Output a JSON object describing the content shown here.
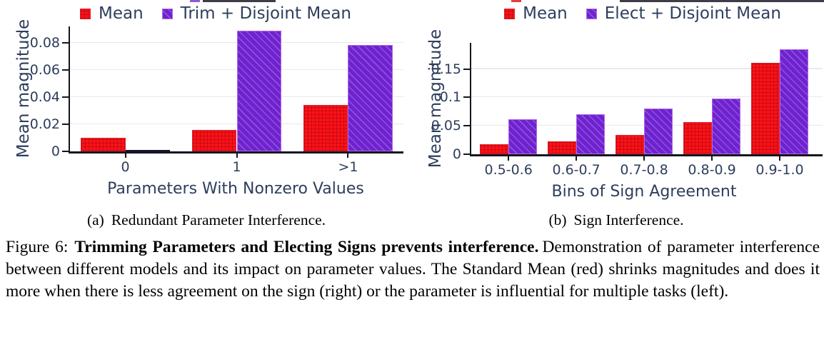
{
  "colors": {
    "mean_red": "#f91318",
    "disjoint_purple": "#6e22d0",
    "near_zero_bar": "#1c1333",
    "text_navy": "#2e3e5c",
    "axis": "#15151f",
    "grid": "#e9e9ed"
  },
  "chart_data": [
    {
      "type": "bar",
      "id": "a",
      "ylabel": "Mean magnitude",
      "xlabel": "Parameters With Nonzero Values",
      "categories": [
        "0",
        "1",
        ">1"
      ],
      "ytick_values": [
        0,
        0.02,
        0.04,
        0.06,
        0.08
      ],
      "ytick_labels": [
        "0",
        "0.02",
        "0.04",
        "0.06",
        "0.08"
      ],
      "ylim": [
        0,
        0.0921
      ],
      "grid": "horizontal",
      "legend_position": "top-center",
      "series": [
        {
          "name": "Mean",
          "color": "#f91318",
          "hatch": "cross",
          "values": [
            0.01,
            0.016,
            0.034
          ]
        },
        {
          "name": "Trim + Disjoint Mean",
          "color": "#6e22d0",
          "hatch": "diag",
          "values": [
            0.0006,
            0.089,
            0.0785
          ]
        }
      ],
      "subcaption": {
        "tag": "(a)",
        "text": "Redundant Parameter Interference."
      }
    },
    {
      "type": "bar",
      "id": "b",
      "ylabel": "Mean magnitude",
      "xlabel": "Bins of Sign Agreement",
      "categories": [
        "0.5-0.6",
        "0.6-0.7",
        "0.7-0.8",
        "0.8-0.9",
        "0.9-1.0"
      ],
      "ytick_values": [
        0,
        0.05,
        0.1,
        0.15
      ],
      "ytick_labels": [
        "0",
        "0.05",
        "0.1",
        "0.15"
      ],
      "ylim": [
        0,
        0.196
      ],
      "grid": "horizontal",
      "legend_position": "top-center",
      "series": [
        {
          "name": "Mean",
          "color": "#f91318",
          "hatch": "cross",
          "values": [
            0.018,
            0.023,
            0.034,
            0.057,
            0.161
          ]
        },
        {
          "name": "Elect + Disjoint Mean",
          "color": "#6e22d0",
          "hatch": "diag",
          "values": [
            0.061,
            0.07,
            0.081,
            0.098,
            0.185
          ]
        }
      ],
      "subcaption": {
        "tag": "(b)",
        "text": "Sign Interference."
      }
    }
  ],
  "caption": {
    "prefix": "Figure 6:",
    "bold": "Trimming Parameters and Electing Signs prevents interference.",
    "rest": "Demonstration of parameter interference between different models and its impact on parameter values. The Standard Mean (red) shrinks magnitudes and does it more when there is less agreement on the sign (right) or the parameter is influential for multiple tasks (left)."
  }
}
